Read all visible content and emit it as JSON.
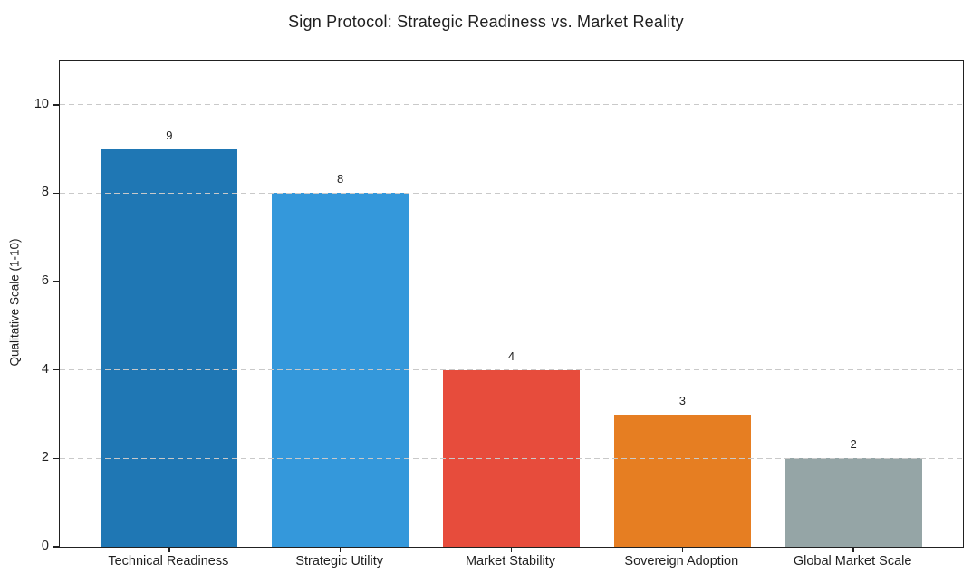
{
  "chart_data": {
    "type": "bar",
    "title": "Sign Protocol: Strategic Readiness vs. Market Reality",
    "xlabel": "",
    "ylabel": "Qualitative Scale (1-10)",
    "categories": [
      "Technical Readiness",
      "Strategic Utility",
      "Market Stability",
      "Sovereign Adoption",
      "Global Market Scale"
    ],
    "values": [
      9,
      8,
      4,
      3,
      2
    ],
    "value_labels": [
      "9",
      "8",
      "4",
      "3",
      "2"
    ],
    "bar_colors": [
      "#1f77b4",
      "#3498db",
      "#e74c3c",
      "#e67e22",
      "#95a5a6"
    ],
    "ylim": [
      0,
      11
    ],
    "yticks": [
      0,
      2,
      4,
      6,
      8,
      10
    ],
    "grid": "horizontal-dashed",
    "grid_over_bars": true,
    "legend": "none",
    "colors": {
      "background": "#ffffff",
      "text": "#1f1f1f",
      "spine": "#212121",
      "grid": "#c9c9c9"
    }
  }
}
